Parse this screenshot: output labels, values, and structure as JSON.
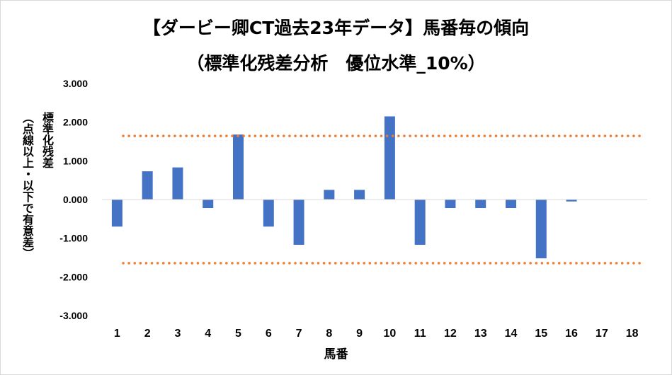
{
  "chart_data": {
    "type": "bar",
    "title": "【ダービー卿CT過去23年データ】馬番毎の傾向",
    "subtitle": "（標準化残差分析　優位水準_10%）",
    "xlabel": "馬番",
    "ylabel": "標準化残差",
    "ylabel_note": "（点線以上・以下で有意差）",
    "ylim": [
      -3,
      3
    ],
    "yticks": [
      "3.000",
      "2.000",
      "1.000",
      "0.000",
      "-1.000",
      "-2.000",
      "-3.000"
    ],
    "ytick_values": [
      3,
      2,
      1,
      0,
      -1,
      -2,
      -3
    ],
    "categories": [
      "1",
      "2",
      "3",
      "4",
      "5",
      "6",
      "7",
      "8",
      "9",
      "10",
      "11",
      "12",
      "13",
      "14",
      "15",
      "16",
      "17",
      "18"
    ],
    "values": [
      -0.7,
      0.73,
      0.83,
      -0.22,
      1.68,
      -0.7,
      -1.17,
      0.25,
      0.25,
      2.15,
      -1.17,
      -0.22,
      -0.22,
      -0.22,
      -1.52,
      -0.05,
      0,
      0
    ],
    "threshold_lines": [
      1.645,
      -1.645
    ],
    "grid": false,
    "colors": {
      "bar": "#4472c4",
      "threshold": "#ed7d31",
      "axis": "#d9d9d9"
    }
  }
}
